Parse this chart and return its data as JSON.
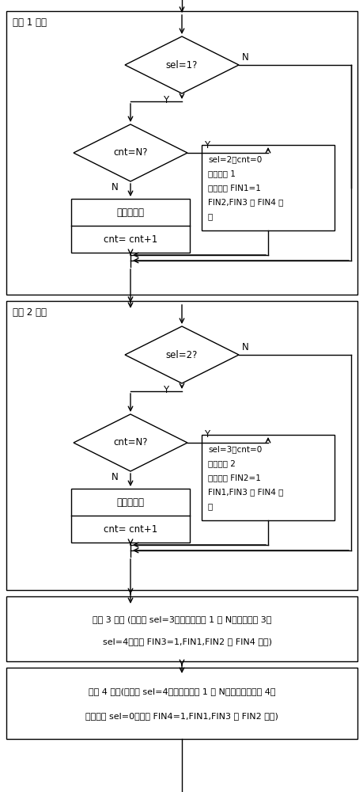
{
  "fig_width": 4.6,
  "fig_height": 10.0,
  "dpi": 100,
  "bg_color": "#ffffff",
  "box_color": "#ffffff",
  "box_edge": "#000000",
  "text_color": "#000000",
  "section1_label": "通道 1 控制",
  "diamond1_text": "sel=1?",
  "diamond2_text": "cnt=N?",
  "rect1_top": "计算占空比",
  "rect1_bot": "cnt= cnt+1",
  "rect2_lines": [
    "sel=2，cnt=0",
    "关闭通道 1",
    "设置标志 FIN1=1",
    "FIN2,FIN3 和 FIN4 归",
    "零"
  ],
  "section2_label": "通道 2 控制",
  "diamond3_text": "sel=2?",
  "diamond4_text": "cnt=N?",
  "rect3_top": "计算占空比",
  "rect3_bot": "cnt= cnt+1",
  "rect4_lines": [
    "sel=3，cnt=0",
    "关闭通道 2",
    "设置标志 FIN2=1",
    "FIN1,FIN3 和 FIN4 归",
    "零"
  ],
  "rect5_lines": [
    "通道 3 控制 (过程中 sel=3，脉冲计数增 1 到 N，关闭通道 3，",
    "    sel=4，设置 FIN3=1,FIN1,FIN2 和 FIN4 归零)"
  ],
  "rect6_lines": [
    "通道 4 控制(过程中 sel=4，脉冲计数增 1 到 N，然后关闭通道 4，",
    "重新设置 sel=0，设置 FIN4=1,FIN1,FIN3 和 FIN2 归零)"
  ],
  "label_N": "N",
  "label_Y": "Y"
}
